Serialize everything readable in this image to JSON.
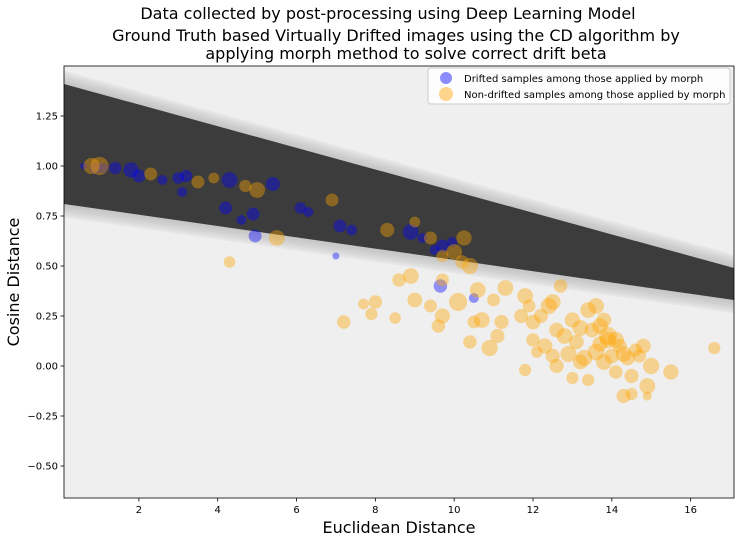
{
  "figure": {
    "suptitle": "Data collected by post-processing using Deep Learning Model",
    "title_line1": "Ground Truth based Virtually Drifted images using the CD algorithm by",
    "title_line2": "applying morph method to solve correct drift beta"
  },
  "chart_data": {
    "type": "scatter",
    "xlabel": "Euclidean Distance",
    "ylabel": "Cosine Distance",
    "xlim": [
      0.1,
      17.1
    ],
    "ylim": [
      -0.66,
      1.5
    ],
    "xticks": [
      2,
      4,
      6,
      8,
      10,
      12,
      14,
      16
    ],
    "yticks": [
      -0.5,
      -0.25,
      0.0,
      0.25,
      0.5,
      0.75,
      1.0,
      1.25
    ],
    "ytick_labels": [
      "−0.50",
      "−0.25",
      "0.00",
      "0.25",
      "0.50",
      "0.75",
      "1.00",
      "1.25"
    ],
    "grid": false,
    "legend_position": "top-right",
    "background": "#efefef",
    "band": {
      "color": "#3c3c3c",
      "halo_color": "#b4b4b4",
      "x": [
        0.1,
        17.1
      ],
      "upper": [
        1.41,
        0.49
      ],
      "lower": [
        0.81,
        0.33
      ]
    },
    "series": [
      {
        "name": "Drifted samples among those applied by morph",
        "color": "#0000ff",
        "points": [
          [
            0.6,
            1.0,
            30
          ],
          [
            0.9,
            0.99,
            90
          ],
          [
            1.1,
            0.99,
            60
          ],
          [
            1.4,
            0.99,
            90
          ],
          [
            1.8,
            0.98,
            140
          ],
          [
            2.0,
            0.95,
            100
          ],
          [
            2.6,
            0.93,
            60
          ],
          [
            3.0,
            0.94,
            80
          ],
          [
            3.2,
            0.95,
            90
          ],
          [
            3.1,
            0.87,
            60
          ],
          [
            4.2,
            0.79,
            100
          ],
          [
            4.3,
            0.93,
            150
          ],
          [
            4.6,
            0.73,
            60
          ],
          [
            4.9,
            0.76,
            100
          ],
          [
            5.4,
            0.91,
            120
          ],
          [
            4.95,
            0.65,
            100
          ],
          [
            6.1,
            0.79,
            80
          ],
          [
            6.3,
            0.77,
            60
          ],
          [
            7.1,
            0.7,
            100
          ],
          [
            7.4,
            0.68,
            70
          ],
          [
            8.9,
            0.67,
            150
          ],
          [
            9.2,
            0.64,
            60
          ],
          [
            9.5,
            0.58,
            60
          ],
          [
            9.7,
            0.6,
            100
          ],
          [
            9.95,
            0.62,
            60
          ],
          [
            9.65,
            0.4,
            110
          ],
          [
            10.5,
            0.34,
            60
          ],
          [
            7.0,
            0.55,
            30
          ]
        ]
      },
      {
        "name": "Non-drifted samples among those applied by morph",
        "color": "#ffa500",
        "points": [
          [
            0.8,
            1.0,
            160
          ],
          [
            1.0,
            1.0,
            200
          ],
          [
            2.3,
            0.96,
            100
          ],
          [
            3.5,
            0.92,
            100
          ],
          [
            3.9,
            0.94,
            70
          ],
          [
            4.7,
            0.9,
            90
          ],
          [
            5.0,
            0.88,
            150
          ],
          [
            6.9,
            0.83,
            100
          ],
          [
            8.3,
            0.68,
            120
          ],
          [
            9.0,
            0.72,
            70
          ],
          [
            9.4,
            0.64,
            100
          ],
          [
            9.7,
            0.55,
            90
          ],
          [
            10.0,
            0.57,
            150
          ],
          [
            10.25,
            0.64,
            140
          ],
          [
            10.2,
            0.52,
            110
          ],
          [
            10.4,
            0.5,
            160
          ],
          [
            5.5,
            0.64,
            150
          ],
          [
            4.3,
            0.52,
            80
          ],
          [
            7.2,
            0.22,
            110
          ],
          [
            7.7,
            0.31,
            70
          ],
          [
            8.0,
            0.32,
            110
          ],
          [
            7.9,
            0.26,
            90
          ],
          [
            8.5,
            0.24,
            80
          ],
          [
            8.6,
            0.43,
            110
          ],
          [
            8.9,
            0.45,
            150
          ],
          [
            9.0,
            0.33,
            130
          ],
          [
            9.4,
            0.3,
            100
          ],
          [
            9.6,
            0.2,
            110
          ],
          [
            9.7,
            0.25,
            140
          ],
          [
            9.7,
            0.43,
            100
          ],
          [
            10.1,
            0.32,
            200
          ],
          [
            10.4,
            0.12,
            110
          ],
          [
            10.5,
            0.22,
            100
          ],
          [
            10.7,
            0.23,
            150
          ],
          [
            10.9,
            0.09,
            160
          ],
          [
            10.6,
            0.38,
            150
          ],
          [
            11.0,
            0.33,
            100
          ],
          [
            11.2,
            0.22,
            120
          ],
          [
            11.3,
            0.39,
            150
          ],
          [
            11.1,
            0.15,
            120
          ],
          [
            11.7,
            0.25,
            120
          ],
          [
            11.8,
            0.35,
            150
          ],
          [
            11.9,
            0.3,
            100
          ],
          [
            12.0,
            0.22,
            130
          ],
          [
            12.1,
            0.07,
            80
          ],
          [
            12.0,
            0.13,
            110
          ],
          [
            12.2,
            0.25,
            120
          ],
          [
            12.3,
            0.1,
            140
          ],
          [
            12.4,
            0.3,
            160
          ],
          [
            12.5,
            0.32,
            150
          ],
          [
            12.6,
            0.18,
            130
          ],
          [
            12.7,
            0.4,
            110
          ],
          [
            12.8,
            0.15,
            150
          ],
          [
            12.6,
            0.0,
            120
          ],
          [
            12.9,
            0.06,
            160
          ],
          [
            13.0,
            0.23,
            140
          ],
          [
            13.1,
            0.12,
            130
          ],
          [
            13.2,
            0.19,
            150
          ],
          [
            13.3,
            0.04,
            160
          ],
          [
            13.4,
            0.28,
            150
          ],
          [
            13.5,
            0.18,
            130
          ],
          [
            13.6,
            0.07,
            170
          ],
          [
            13.7,
            0.11,
            140
          ],
          [
            13.8,
            0.02,
            150
          ],
          [
            13.9,
            0.13,
            160
          ],
          [
            14.0,
            0.05,
            130
          ],
          [
            14.1,
            -0.03,
            110
          ],
          [
            14.2,
            0.1,
            120
          ],
          [
            14.3,
            0.06,
            150
          ],
          [
            14.4,
            0.04,
            130
          ],
          [
            14.5,
            -0.05,
            120
          ],
          [
            14.6,
            0.08,
            100
          ],
          [
            14.7,
            0.05,
            110
          ],
          [
            14.8,
            0.1,
            130
          ],
          [
            15.0,
            0.0,
            160
          ],
          [
            15.5,
            -0.03,
            140
          ],
          [
            14.9,
            -0.1,
            150
          ],
          [
            14.3,
            -0.15,
            120
          ],
          [
            14.5,
            -0.14,
            90
          ],
          [
            13.0,
            -0.06,
            90
          ],
          [
            13.4,
            -0.07,
            90
          ],
          [
            13.7,
            0.2,
            150
          ],
          [
            13.6,
            0.3,
            150
          ],
          [
            13.8,
            0.23,
            130
          ],
          [
            11.8,
            -0.02,
            90
          ],
          [
            13.2,
            0.02,
            130
          ],
          [
            14.9,
            -0.15,
            50
          ],
          [
            16.6,
            0.09,
            90
          ],
          [
            12.5,
            0.05,
            120
          ],
          [
            13.9,
            0.15,
            200
          ],
          [
            14.1,
            0.13,
            160
          ]
        ]
      }
    ]
  }
}
